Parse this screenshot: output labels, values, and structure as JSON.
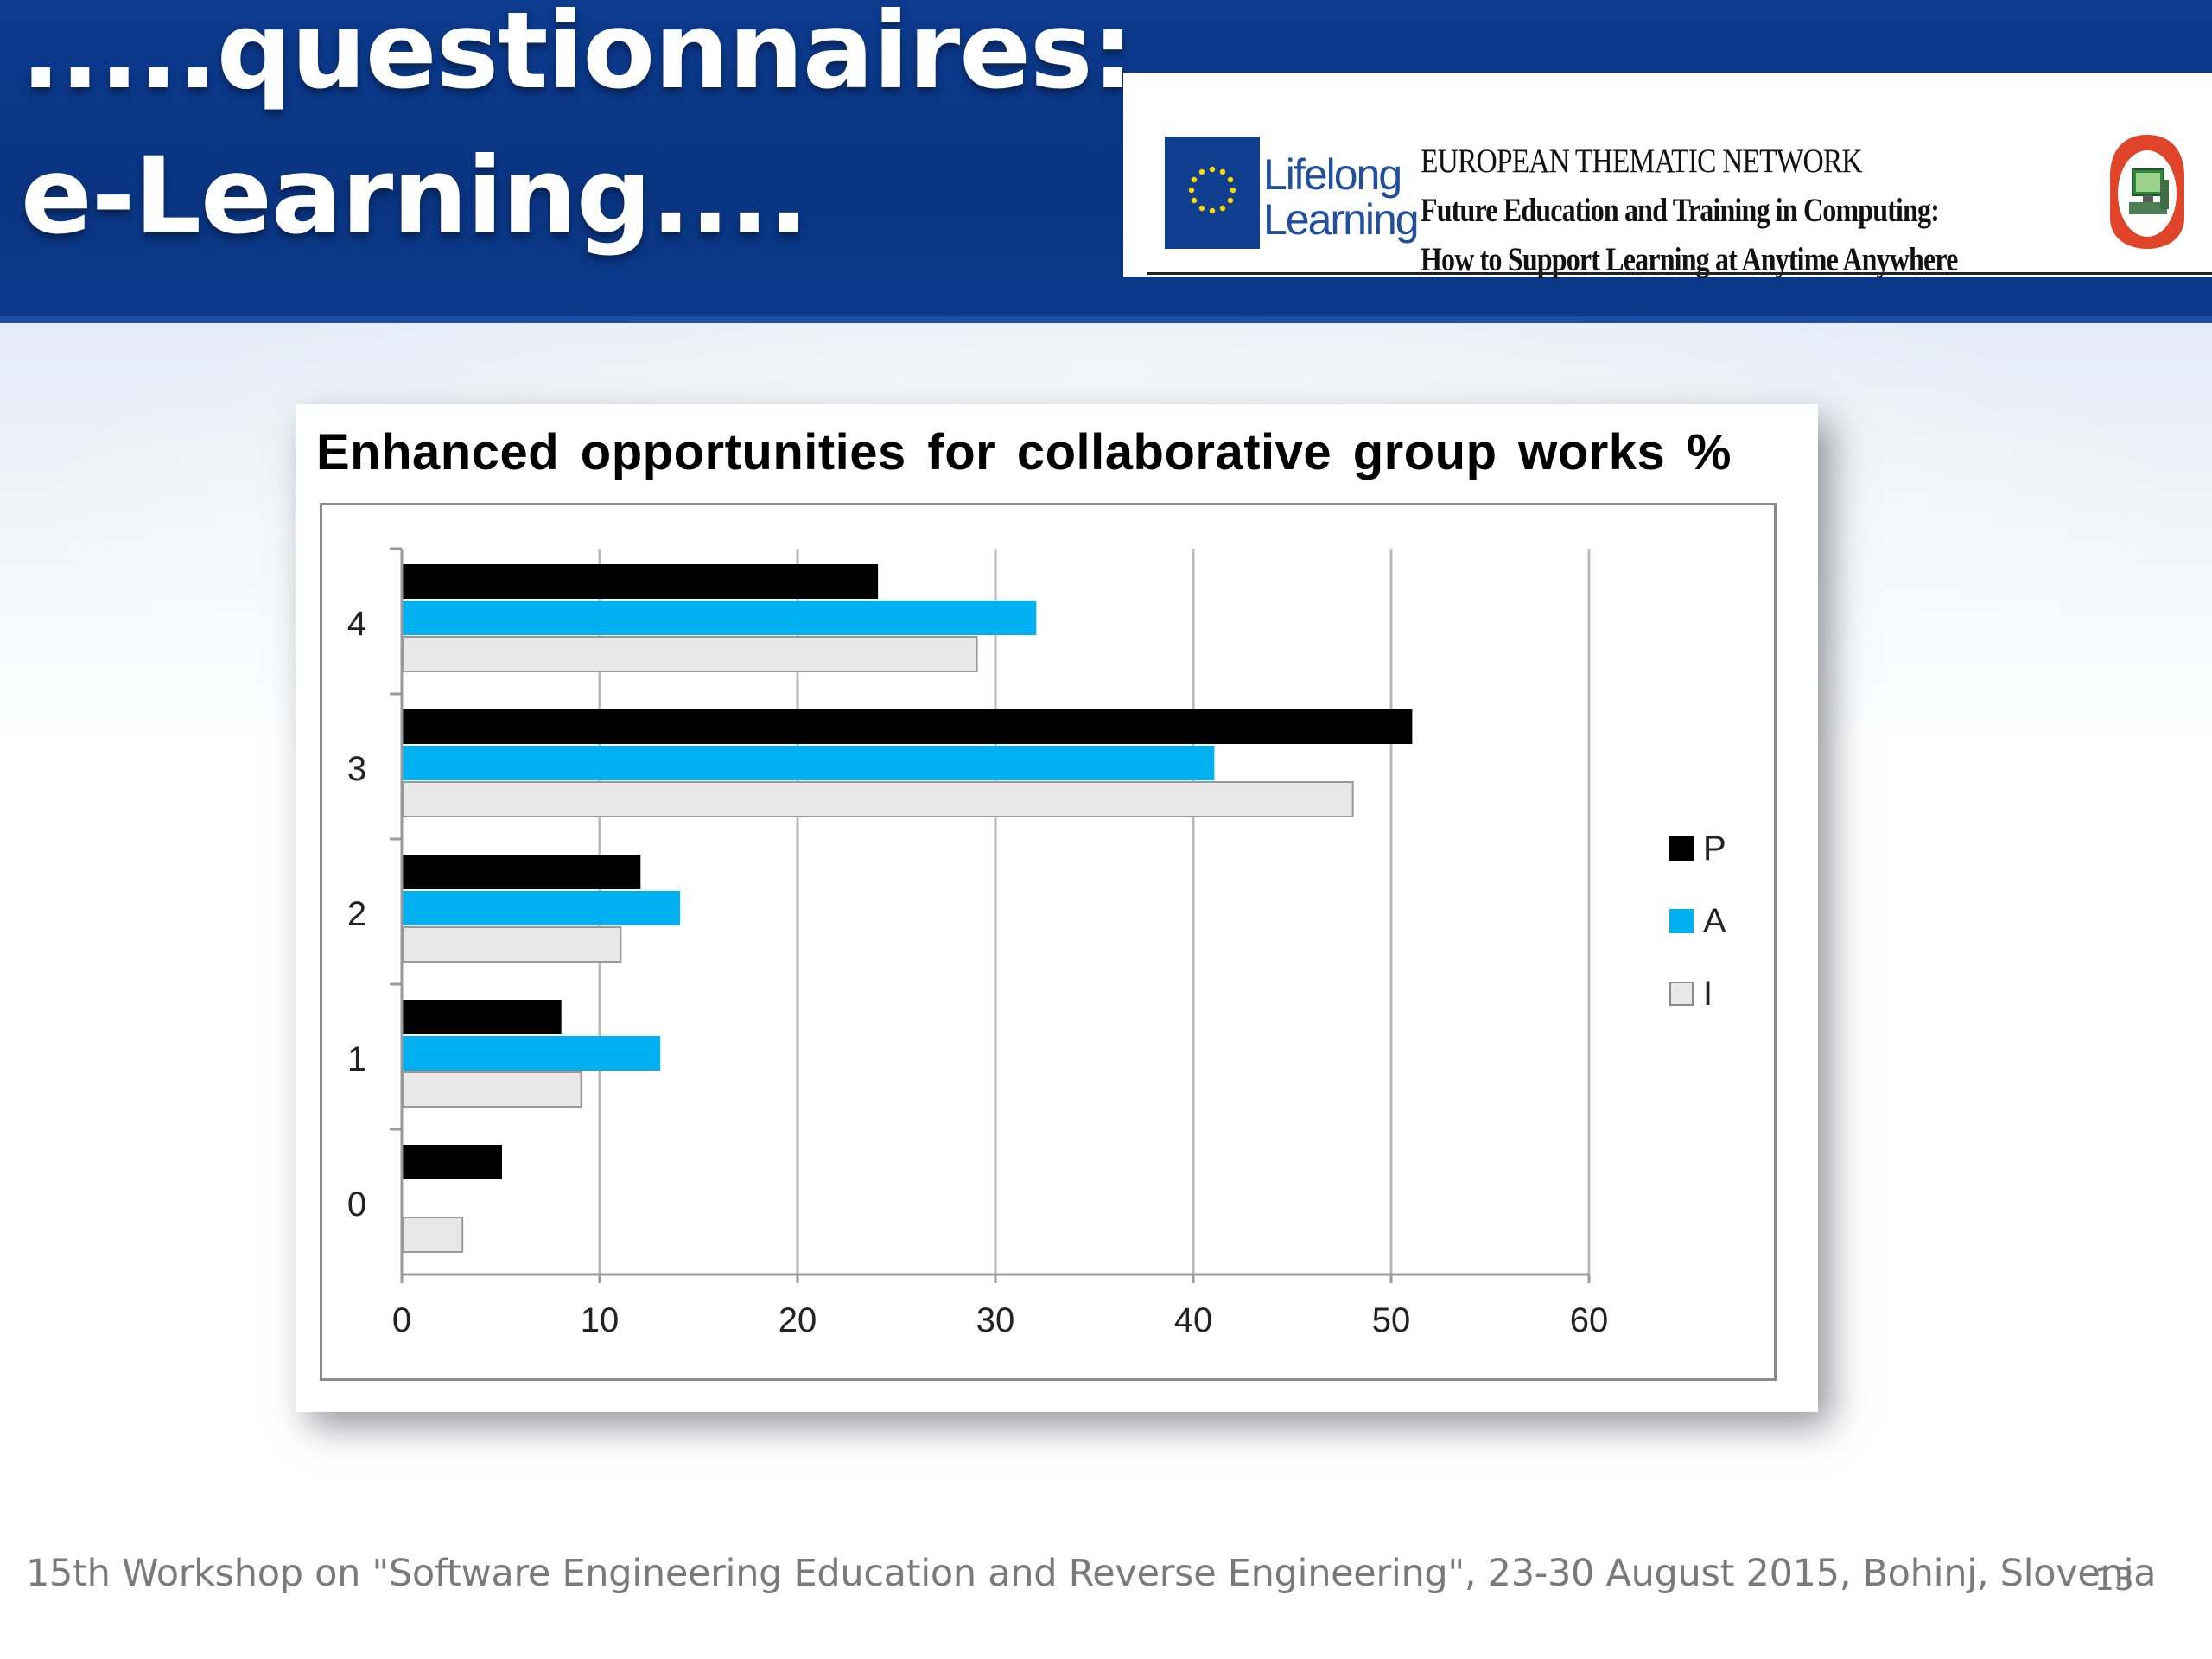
{
  "slide": {
    "title_line1": ".....questionnaires:",
    "title_line2": "e-Learning....",
    "footer": "15th Workshop on \"Software Engineering Education and Reverse Engineering\", 23-30 August 2015, Bohinj, Slovenia",
    "page_number": "13"
  },
  "banner": {
    "lifelong": "Lifelong",
    "learning": "Learning",
    "network_line1": "EUROPEAN THEMATIC NETWORK",
    "network_line2": "Future Education and Training in Computing:",
    "network_line3": "How to Support Learning at Anytime Anywhere"
  },
  "chart_data": {
    "type": "bar",
    "orientation": "horizontal",
    "title": "Enhanced opportunities for collaborative group works %",
    "categories": [
      "0",
      "1",
      "2",
      "3",
      "4"
    ],
    "series": [
      {
        "name": "P",
        "color": "#000000",
        "values": [
          5,
          8,
          12,
          51,
          24
        ]
      },
      {
        "name": "A",
        "color": "#00b0f0",
        "values": [
          0,
          13,
          14,
          41,
          32
        ]
      },
      {
        "name": "I",
        "color": "#e8e8e8",
        "values": [
          3,
          9,
          11,
          48,
          29
        ]
      }
    ],
    "xlim": [
      0,
      60
    ],
    "xticks": [
      "0",
      "10",
      "20",
      "30",
      "40",
      "50",
      "60"
    ],
    "grid": true,
    "legend_position": "right",
    "xlabel": "",
    "ylabel": ""
  }
}
